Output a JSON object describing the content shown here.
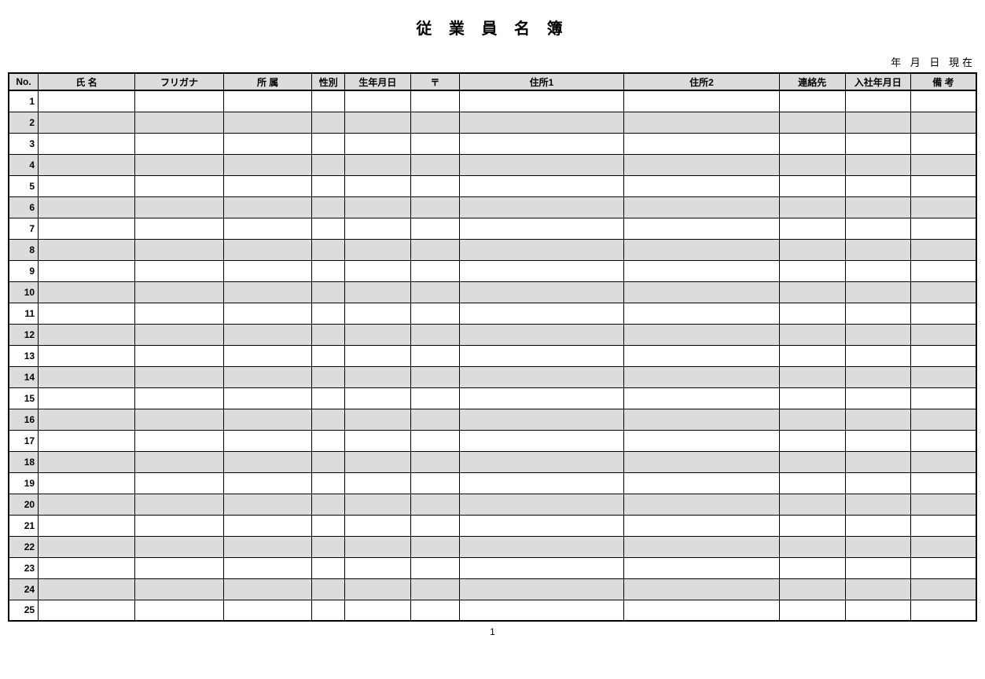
{
  "document": {
    "title": "従 業 員 名 簿",
    "date_line": "年 月 日 現在",
    "page_number": "1"
  },
  "table": {
    "columns": [
      {
        "key": "no",
        "label": "No.",
        "class": "col-no"
      },
      {
        "key": "name",
        "label": "氏 名",
        "class": "col-name"
      },
      {
        "key": "furigana",
        "label": "フリガナ",
        "class": "col-furigana"
      },
      {
        "key": "dept",
        "label": "所 属",
        "class": "col-dept"
      },
      {
        "key": "gender",
        "label": "性別",
        "class": "col-gender"
      },
      {
        "key": "dob",
        "label": "生年月日",
        "class": "col-dob"
      },
      {
        "key": "zip",
        "label": "〒",
        "class": "col-zip"
      },
      {
        "key": "addr1",
        "label": "住所1",
        "class": "col-addr1"
      },
      {
        "key": "addr2",
        "label": "住所2",
        "class": "col-addr2"
      },
      {
        "key": "contact",
        "label": "連絡先",
        "class": "col-contact"
      },
      {
        "key": "hire",
        "label": "入社年月日",
        "class": "col-hire"
      },
      {
        "key": "notes",
        "label": "備 考",
        "class": "col-notes"
      }
    ],
    "row_count": 25,
    "row_bg_odd": "#ffffff",
    "row_bg_even": "#dcdcdc",
    "header_bg": "#dcdcdc",
    "border_color": "#000000"
  }
}
